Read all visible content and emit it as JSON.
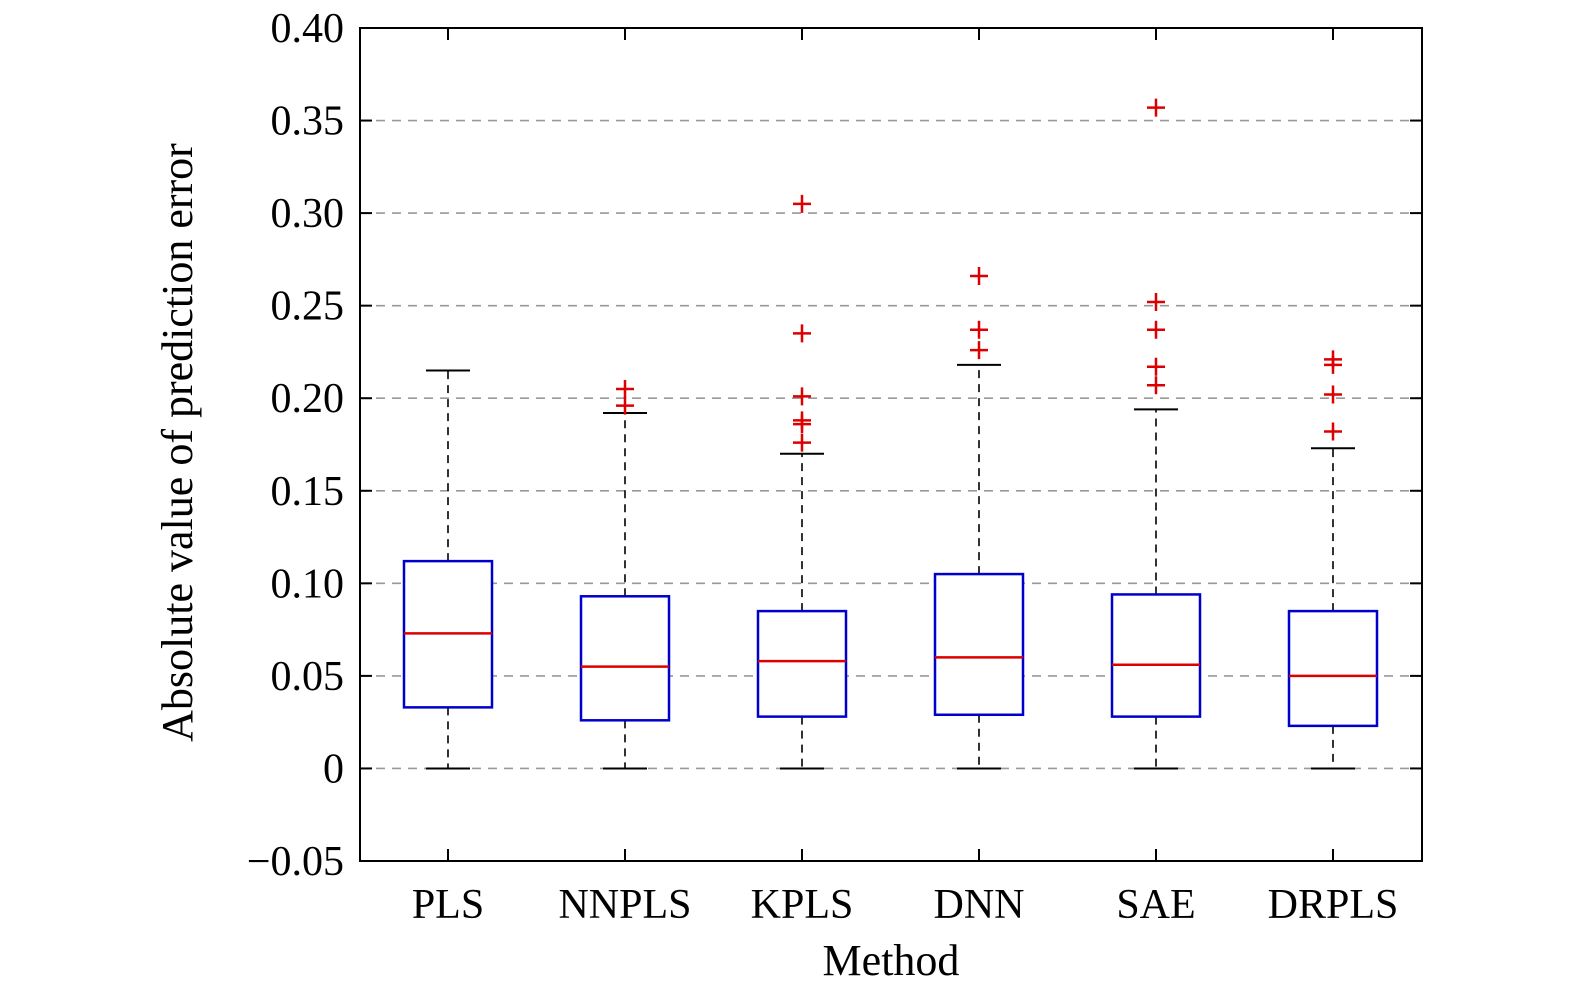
{
  "chart_data": {
    "type": "box",
    "xlabel": "Method",
    "ylabel": "Absolute value of prediction error",
    "ylim": [
      -0.05,
      0.4
    ],
    "yticks": [
      -0.05,
      0,
      0.05,
      0.1,
      0.15,
      0.2,
      0.25,
      0.3,
      0.35,
      0.4
    ],
    "ytick_labels": [
      "−0.05",
      "0",
      "0.05",
      "0.10",
      "0.15",
      "0.20",
      "0.25",
      "0.30",
      "0.35",
      "0.40"
    ],
    "grid": "horizontal dashed",
    "categories": [
      "PLS",
      "NNPLS",
      "KPLS",
      "DNN",
      "SAE",
      "DRPLS"
    ],
    "boxes": [
      {
        "min": 0.0,
        "q1": 0.033,
        "median": 0.073,
        "q3": 0.112,
        "max": 0.215,
        "outliers": []
      },
      {
        "min": 0.0,
        "q1": 0.026,
        "median": 0.055,
        "q3": 0.093,
        "max": 0.192,
        "outliers": [
          0.205,
          0.196
        ]
      },
      {
        "min": 0.0,
        "q1": 0.028,
        "median": 0.058,
        "q3": 0.085,
        "max": 0.17,
        "outliers": [
          0.305,
          0.235,
          0.201,
          0.188,
          0.186,
          0.176
        ]
      },
      {
        "min": 0.0,
        "q1": 0.029,
        "median": 0.06,
        "q3": 0.105,
        "max": 0.218,
        "outliers": [
          0.266,
          0.237,
          0.226
        ]
      },
      {
        "min": 0.0,
        "q1": 0.028,
        "median": 0.056,
        "q3": 0.094,
        "max": 0.194,
        "outliers": [
          0.357,
          0.252,
          0.237,
          0.217,
          0.207
        ]
      },
      {
        "min": 0.0,
        "q1": 0.023,
        "median": 0.05,
        "q3": 0.085,
        "max": 0.173,
        "outliers": [
          0.221,
          0.218,
          0.202,
          0.182
        ]
      }
    ],
    "colors": {
      "box": "#0000cc",
      "median": "#dd0000",
      "outlier": "#dd0000",
      "whisker": "#000000",
      "grid": "#999999"
    }
  }
}
